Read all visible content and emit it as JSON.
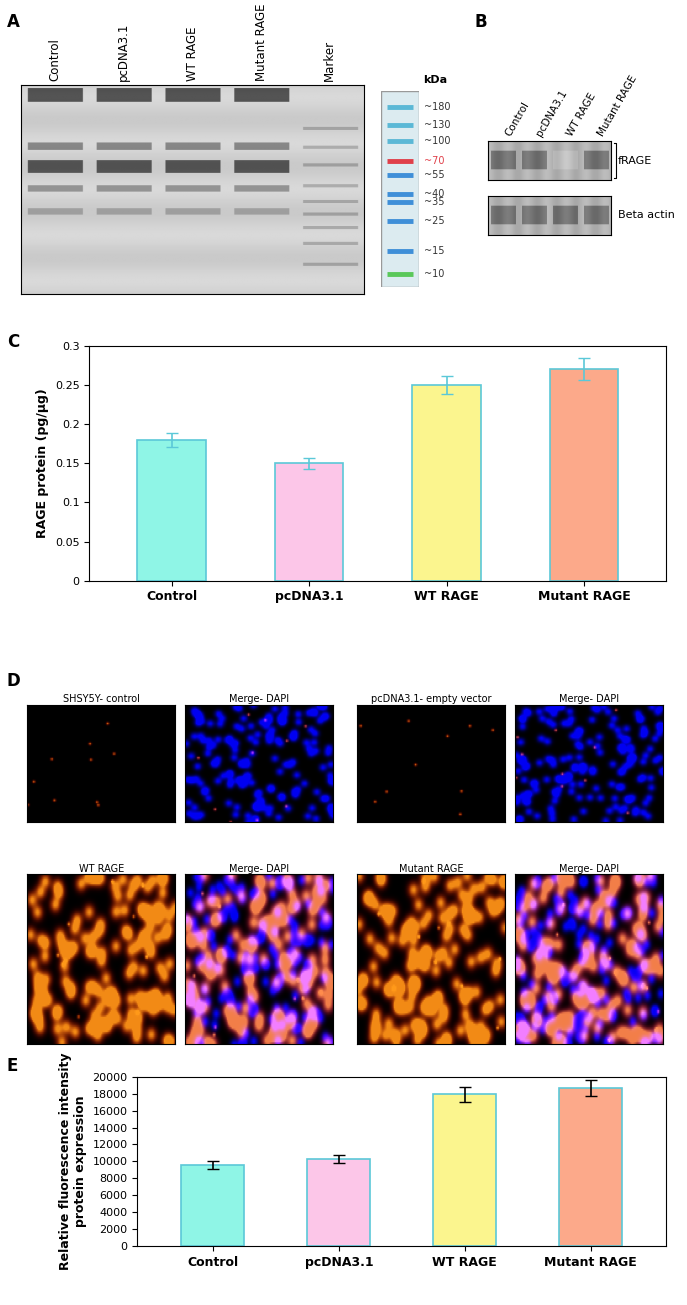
{
  "panel_A": {
    "letter": "A",
    "lanes": [
      "Control",
      "pcDNA3.1",
      "WT RAGE",
      "Mutant RAGE",
      "Marker"
    ],
    "ladder_unit": "kDa",
    "ladder": [
      {
        "value": 180,
        "label": "~180",
        "color": "#5bb8d6"
      },
      {
        "value": 130,
        "label": "~130",
        "color": "#5bb8d6"
      },
      {
        "value": 100,
        "label": "~100",
        "color": "#5bb8d6"
      },
      {
        "value": 70,
        "label": "~70",
        "color": "#e0404a"
      },
      {
        "value": 55,
        "label": "~55",
        "color": "#3f8fd8"
      },
      {
        "value": 40,
        "label": "~40",
        "color": "#3f8fd8"
      },
      {
        "value": 35,
        "label": "~35",
        "color": "#3f8fd8"
      },
      {
        "value": 25,
        "label": "~25",
        "color": "#3f8fd8"
      },
      {
        "value": 15,
        "label": "~15",
        "color": "#3f8fd8"
      },
      {
        "value": 10,
        "label": "~10",
        "color": "#5ac85a"
      }
    ]
  },
  "panel_B": {
    "letter": "B",
    "lanes": [
      "Control",
      "pcDNA3.1",
      "WT RAGE",
      "Mutant RAGE"
    ],
    "bands": [
      "fRAGE",
      "Beta actin"
    ]
  },
  "chart_data": [
    {
      "panel": "C",
      "type": "bar",
      "ylabel": "RAGE protein (pg/µg)",
      "categories": [
        "Control",
        "pcDNA3.1",
        "WT RAGE",
        "Mutant RAGE"
      ],
      "values": [
        0.18,
        0.15,
        0.25,
        0.27
      ],
      "errors": [
        0.009,
        0.007,
        0.012,
        0.014
      ],
      "colors": [
        "#8ff5e6",
        "#fcc6e8",
        "#fbf58e",
        "#fca98a"
      ],
      "ylim": [
        0,
        0.3
      ],
      "yticks": [
        0,
        0.05,
        0.1,
        0.15,
        0.2,
        0.25,
        0.3
      ]
    },
    {
      "panel": "E",
      "type": "bar",
      "ylabel": "Relative fluorescence intensity\nprotein expression",
      "categories": [
        "Control",
        "pcDNA3.1",
        "WT RAGE",
        "Mutant RAGE"
      ],
      "values": [
        9600,
        10300,
        17900,
        18700
      ],
      "errors": [
        450,
        500,
        900,
        950
      ],
      "colors": [
        "#8ff5e6",
        "#fcc6e8",
        "#fbf58e",
        "#fca98a"
      ],
      "ylim": [
        0,
        20000
      ],
      "yticks": [
        0,
        2000,
        4000,
        6000,
        8000,
        10000,
        12000,
        14000,
        16000,
        18000,
        20000
      ]
    }
  ],
  "panel_D": {
    "letter": "D",
    "images": [
      "SHSY5Y- control",
      "Merge- DAPI",
      "pcDNA3.1- empty vector",
      "Merge- DAPI",
      "WT RAGE",
      "Merge- DAPI",
      "Mutant RAGE",
      "Merge- DAPI"
    ]
  }
}
